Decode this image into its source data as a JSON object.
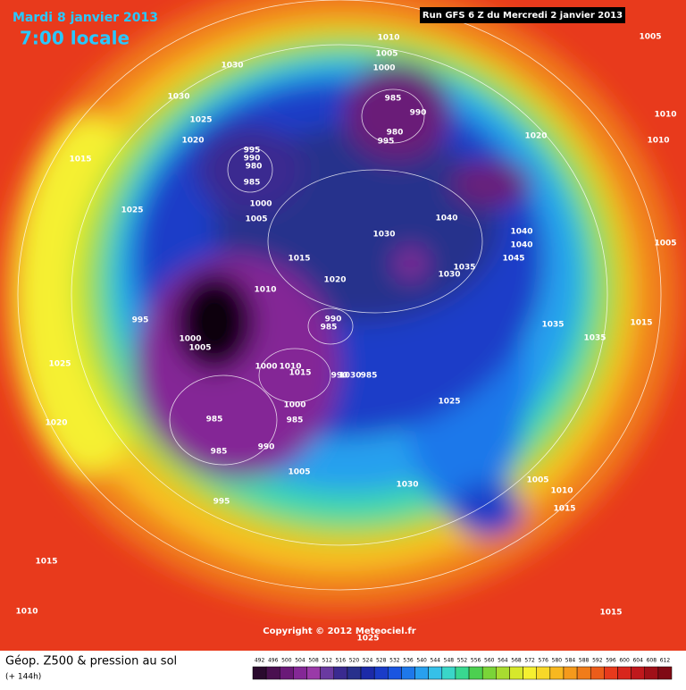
{
  "header": {
    "date": "Mardi 8 janvier 2013",
    "time": "7:00 locale",
    "run": "Run GFS 6 Z du Mercredi 2 janvier 2013"
  },
  "copyright": "Copyright © 2012 Meteociel.fr",
  "legend": {
    "title": "Géop. Z500 & pression au sol",
    "subtitle": "(+ 144h)",
    "values": [
      492,
      496,
      500,
      504,
      508,
      512,
      516,
      520,
      524,
      528,
      532,
      536,
      540,
      544,
      548,
      552,
      556,
      560,
      564,
      568,
      572,
      576,
      580,
      584,
      588,
      592,
      596,
      600,
      604,
      608,
      612
    ],
    "colors": [
      "#2a0a2e",
      "#4a1050",
      "#6a1a78",
      "#842896",
      "#9a3aa8",
      "#6a3aa0",
      "#3a2a90",
      "#28308c",
      "#1c2aa8",
      "#1a3cc8",
      "#1a55e0",
      "#1e78ea",
      "#28a0ee",
      "#36c0e8",
      "#3ad6c8",
      "#38d890",
      "#4cd050",
      "#7ad438",
      "#a8dc30",
      "#d6e82c",
      "#f5f030",
      "#f8d828",
      "#f8b820",
      "#f59a1c",
      "#f07c1a",
      "#ec5c1a",
      "#e83a1c",
      "#d8261c",
      "#c0181c",
      "#a01018",
      "#800a14"
    ]
  },
  "pressure_labels": [
    "1010",
    "1005",
    "1000",
    "1030",
    "1030",
    "1025",
    "1020",
    "1015",
    "985",
    "990",
    "980",
    "995",
    "995",
    "990",
    "980",
    "985",
    "1000",
    "1005",
    "1025",
    "1040",
    "1030",
    "1040",
    "1040",
    "1045",
    "1035",
    "1030",
    "1015",
    "1020",
    "1010",
    "995",
    "990",
    "985",
    "1000",
    "1005",
    "1025",
    "1000",
    "1010",
    "1015",
    "990",
    "1030",
    "985",
    "1025",
    "1000",
    "1020",
    "985",
    "985",
    "990",
    "985",
    "1005",
    "1030",
    "995",
    "1005",
    "1010",
    "1015",
    "1035",
    "1035",
    "1015",
    "1005",
    "1010",
    "1010",
    "1005",
    "1020",
    "1015",
    "1010",
    "1015",
    "1025"
  ]
}
